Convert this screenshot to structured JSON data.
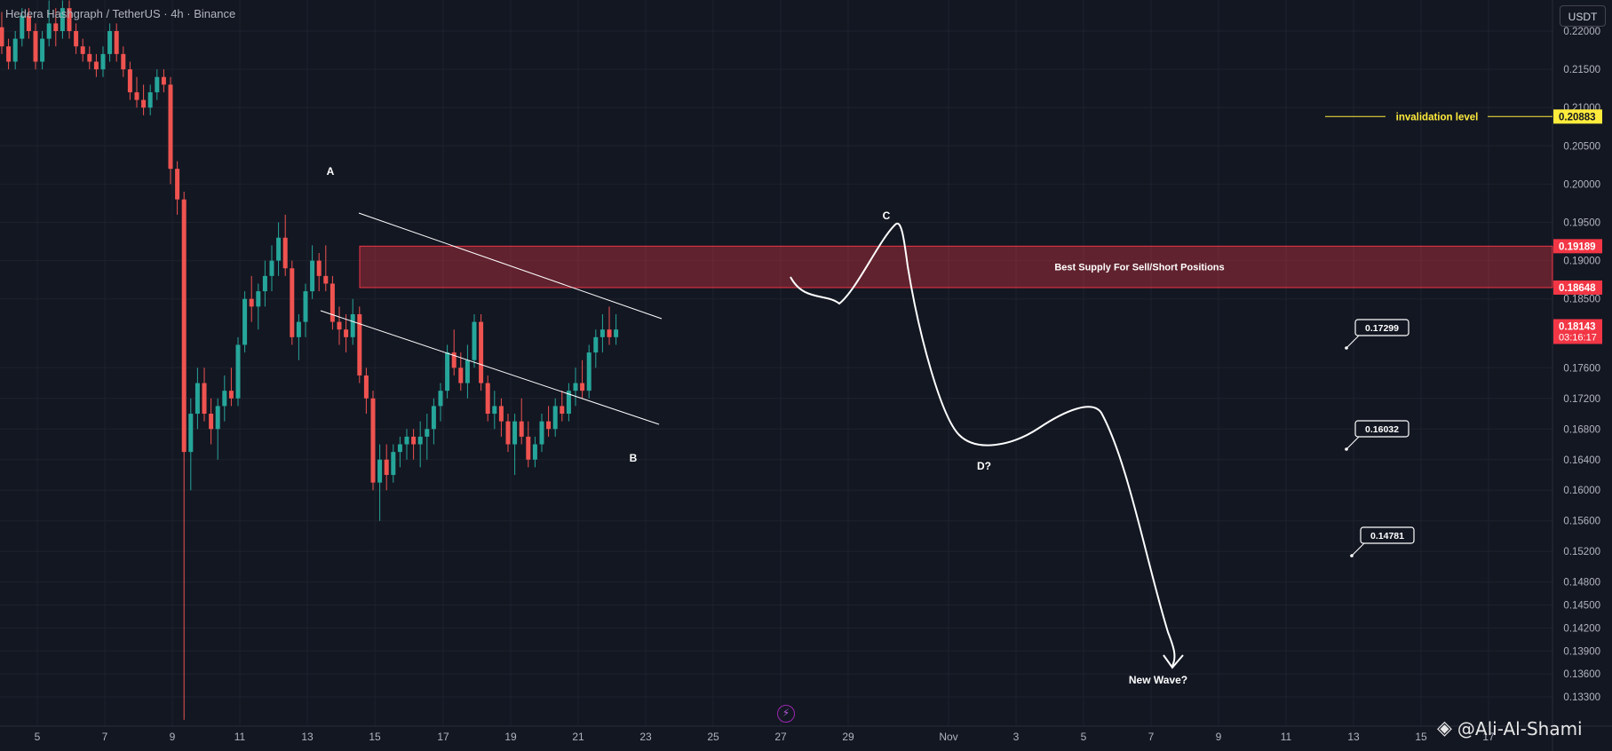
{
  "header": {
    "symbol_title": "Hedera Hashgraph / TetherUS · 4h · Binance",
    "currency_button": "USDT"
  },
  "watermark": {
    "icon": "binance-square-icon",
    "text": "@Ali-Al-Shami"
  },
  "bolt_icon": "lightning-icon",
  "chart_data": {
    "type": "candlestick",
    "timeframe": "4h",
    "exchange": "Binance",
    "y_axis": {
      "ticks": [
        "0.22000",
        "0.21500",
        "0.21000",
        "0.20500",
        "0.20000",
        "0.19500",
        "0.19000",
        "0.18500",
        "0.17600",
        "0.17200",
        "0.16800",
        "0.16400",
        "0.16000",
        "0.15600",
        "0.15200",
        "0.14800",
        "0.14500",
        "0.14200",
        "0.13900",
        "0.13600",
        "0.13300"
      ],
      "tick_values": [
        0.22,
        0.215,
        0.21,
        0.205,
        0.2,
        0.195,
        0.19,
        0.185,
        0.176,
        0.172,
        0.168,
        0.164,
        0.16,
        0.156,
        0.152,
        0.148,
        0.145,
        0.142,
        0.139,
        0.136,
        0.133
      ]
    },
    "x_axis": {
      "ticks": [
        "5",
        "7",
        "9",
        "11",
        "13",
        "15",
        "17",
        "19",
        "21",
        "23",
        "25",
        "27",
        "29",
        "Nov",
        "3",
        "5",
        "7",
        "9",
        "11",
        "13",
        "15",
        "17"
      ]
    },
    "price_labels": [
      {
        "text": "0.20883",
        "value": 0.20883,
        "color": "#ffeb3b",
        "text_color": "#131722"
      },
      {
        "text": "0.19189",
        "value": 0.19189,
        "color": "#f23645",
        "text_color": "#ffffff"
      },
      {
        "text": "0.18648",
        "value": 0.18648,
        "color": "#f23645",
        "text_color": "#ffffff"
      },
      {
        "text": "0.18143",
        "value": 0.18143,
        "color": "#f23645",
        "text_color": "#ffffff",
        "countdown": "03:16:17"
      }
    ],
    "supply_zone": {
      "top": 0.19189,
      "bottom": 0.18648,
      "label": "Best Supply For Sell/Short Positions",
      "color": "#f23645"
    },
    "invalidation": {
      "value": 0.20883,
      "label": "invalidation level",
      "color": "#ffeb3b"
    },
    "wave_labels": [
      "A",
      "B",
      "C",
      "D?",
      "New Wave?"
    ],
    "targets": [
      "0.17299",
      "0.16032",
      "0.14781"
    ],
    "target_values": [
      0.17299,
      0.16032,
      0.14781
    ],
    "colors": {
      "up": "#26a69a",
      "down": "#ef5350",
      "background": "#131722"
    },
    "candles": [
      [
        0.2205,
        0.2225,
        0.217,
        0.218
      ],
      [
        0.218,
        0.219,
        0.215,
        0.216
      ],
      [
        0.216,
        0.22,
        0.215,
        0.219
      ],
      [
        0.219,
        0.223,
        0.218,
        0.222
      ],
      [
        0.222,
        0.223,
        0.219,
        0.22
      ],
      [
        0.22,
        0.221,
        0.215,
        0.216
      ],
      [
        0.216,
        0.22,
        0.215,
        0.219
      ],
      [
        0.219,
        0.224,
        0.218,
        0.221
      ],
      [
        0.221,
        0.223,
        0.218,
        0.22
      ],
      [
        0.22,
        0.224,
        0.219,
        0.223
      ],
      [
        0.223,
        0.224,
        0.219,
        0.22
      ],
      [
        0.22,
        0.221,
        0.217,
        0.218
      ],
      [
        0.218,
        0.219,
        0.216,
        0.217
      ],
      [
        0.217,
        0.218,
        0.215,
        0.216
      ],
      [
        0.216,
        0.217,
        0.214,
        0.215
      ],
      [
        0.215,
        0.218,
        0.214,
        0.217
      ],
      [
        0.217,
        0.221,
        0.216,
        0.22
      ],
      [
        0.22,
        0.221,
        0.216,
        0.217
      ],
      [
        0.217,
        0.218,
        0.214,
        0.215
      ],
      [
        0.215,
        0.216,
        0.211,
        0.212
      ],
      [
        0.212,
        0.214,
        0.21,
        0.211
      ],
      [
        0.211,
        0.213,
        0.209,
        0.21
      ],
      [
        0.21,
        0.213,
        0.209,
        0.212
      ],
      [
        0.212,
        0.215,
        0.211,
        0.214
      ],
      [
        0.214,
        0.215,
        0.212,
        0.213
      ],
      [
        0.213,
        0.214,
        0.2,
        0.202
      ],
      [
        0.202,
        0.203,
        0.196,
        0.198
      ],
      [
        0.198,
        0.199,
        0.13,
        0.165
      ],
      [
        0.165,
        0.172,
        0.16,
        0.17
      ],
      [
        0.17,
        0.176,
        0.168,
        0.174
      ],
      [
        0.174,
        0.176,
        0.169,
        0.17
      ],
      [
        0.17,
        0.172,
        0.166,
        0.168
      ],
      [
        0.168,
        0.172,
        0.164,
        0.171
      ],
      [
        0.171,
        0.175,
        0.169,
        0.173
      ],
      [
        0.173,
        0.176,
        0.171,
        0.172
      ],
      [
        0.172,
        0.18,
        0.171,
        0.179
      ],
      [
        0.179,
        0.186,
        0.178,
        0.185
      ],
      [
        0.185,
        0.188,
        0.182,
        0.184
      ],
      [
        0.184,
        0.187,
        0.181,
        0.186
      ],
      [
        0.186,
        0.19,
        0.184,
        0.188
      ],
      [
        0.188,
        0.192,
        0.186,
        0.19
      ],
      [
        0.19,
        0.195,
        0.188,
        0.193
      ],
      [
        0.193,
        0.196,
        0.188,
        0.189
      ],
      [
        0.189,
        0.19,
        0.179,
        0.18
      ],
      [
        0.18,
        0.183,
        0.177,
        0.182
      ],
      [
        0.182,
        0.187,
        0.18,
        0.186
      ],
      [
        0.186,
        0.192,
        0.185,
        0.19
      ],
      [
        0.19,
        0.191,
        0.186,
        0.188
      ],
      [
        0.188,
        0.192,
        0.186,
        0.187
      ],
      [
        0.187,
        0.188,
        0.181,
        0.182
      ],
      [
        0.182,
        0.184,
        0.179,
        0.181
      ],
      [
        0.181,
        0.183,
        0.178,
        0.18
      ],
      [
        0.18,
        0.185,
        0.179,
        0.183
      ],
      [
        0.183,
        0.184,
        0.174,
        0.175
      ],
      [
        0.175,
        0.176,
        0.17,
        0.172
      ],
      [
        0.172,
        0.173,
        0.16,
        0.161
      ],
      [
        0.161,
        0.166,
        0.156,
        0.164
      ],
      [
        0.164,
        0.166,
        0.16,
        0.162
      ],
      [
        0.162,
        0.166,
        0.161,
        0.165
      ],
      [
        0.165,
        0.167,
        0.163,
        0.166
      ],
      [
        0.166,
        0.168,
        0.164,
        0.167
      ],
      [
        0.167,
        0.168,
        0.164,
        0.166
      ],
      [
        0.166,
        0.169,
        0.163,
        0.167
      ],
      [
        0.167,
        0.17,
        0.164,
        0.168
      ],
      [
        0.168,
        0.172,
        0.166,
        0.171
      ],
      [
        0.171,
        0.174,
        0.169,
        0.173
      ],
      [
        0.173,
        0.179,
        0.172,
        0.178
      ],
      [
        0.178,
        0.181,
        0.175,
        0.176
      ],
      [
        0.176,
        0.178,
        0.173,
        0.174
      ],
      [
        0.174,
        0.179,
        0.172,
        0.177
      ],
      [
        0.177,
        0.183,
        0.176,
        0.182
      ],
      [
        0.182,
        0.183,
        0.173,
        0.174
      ],
      [
        0.174,
        0.175,
        0.169,
        0.17
      ],
      [
        0.17,
        0.173,
        0.168,
        0.171
      ],
      [
        0.171,
        0.172,
        0.167,
        0.169
      ],
      [
        0.169,
        0.17,
        0.165,
        0.166
      ],
      [
        0.166,
        0.17,
        0.162,
        0.169
      ],
      [
        0.169,
        0.172,
        0.166,
        0.167
      ],
      [
        0.167,
        0.169,
        0.163,
        0.164
      ],
      [
        0.164,
        0.167,
        0.163,
        0.166
      ],
      [
        0.166,
        0.17,
        0.165,
        0.169
      ],
      [
        0.169,
        0.171,
        0.167,
        0.168
      ],
      [
        0.168,
        0.172,
        0.167,
        0.171
      ],
      [
        0.171,
        0.173,
        0.169,
        0.17
      ],
      [
        0.17,
        0.174,
        0.169,
        0.173
      ],
      [
        0.173,
        0.176,
        0.171,
        0.174
      ],
      [
        0.174,
        0.177,
        0.172,
        0.173
      ],
      [
        0.173,
        0.179,
        0.172,
        0.178
      ],
      [
        0.178,
        0.181,
        0.176,
        0.18
      ],
      [
        0.18,
        0.183,
        0.178,
        0.181
      ],
      [
        0.181,
        0.184,
        0.179,
        0.18
      ],
      [
        0.18,
        0.183,
        0.179,
        0.181
      ]
    ]
  }
}
